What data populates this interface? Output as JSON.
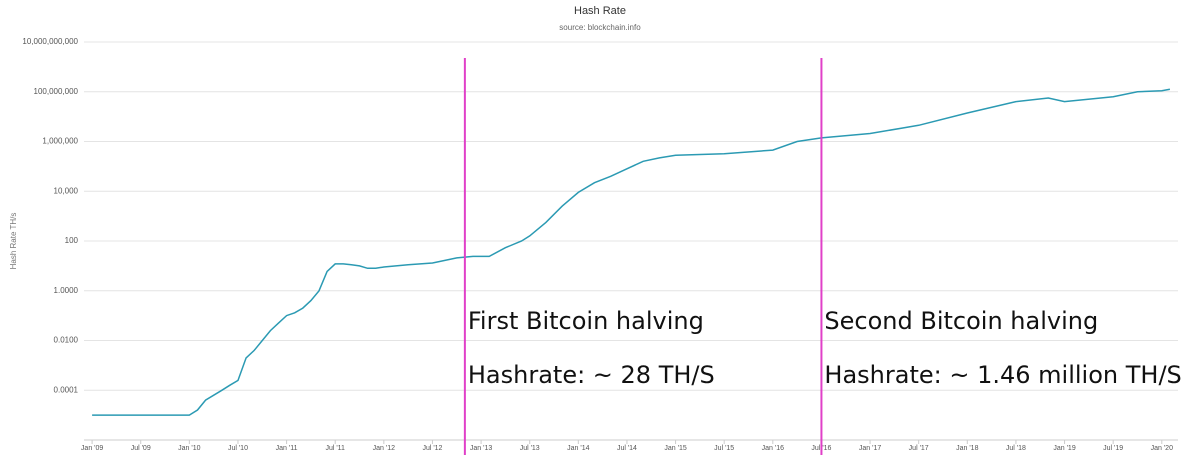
{
  "chart_data": {
    "type": "line",
    "title": "Hash Rate",
    "subtitle": "source: blockchain.info",
    "y_label": "Hash Rate TH/s",
    "log_y": true,
    "grid": true,
    "x": [
      "2009-01",
      "2010-01",
      "2010-02",
      "2010-03",
      "2010-05",
      "2010-06",
      "2010-07",
      "2010-08",
      "2010-09",
      "2010-10",
      "2010-11",
      "2010-12",
      "2011-01",
      "2011-02",
      "2011-03",
      "2011-04",
      "2011-05",
      "2011-06",
      "2011-07",
      "2011-08",
      "2011-09",
      "2011-10",
      "2011-11",
      "2011-12",
      "2012-01",
      "2012-04",
      "2012-07",
      "2012-10",
      "2012-12",
      "2013-02",
      "2013-04",
      "2013-06",
      "2013-07",
      "2013-09",
      "2013-11",
      "2014-01",
      "2014-03",
      "2014-05",
      "2014-07",
      "2014-09",
      "2014-11",
      "2015-01",
      "2015-07",
      "2016-01",
      "2016-04",
      "2016-07",
      "2017-01",
      "2017-07",
      "2018-01",
      "2018-07",
      "2018-11",
      "2019-01",
      "2019-07",
      "2019-10",
      "2020-01",
      "2020-02"
    ],
    "series": [
      {
        "name": "Hash Rate",
        "color": "#2b9ab3",
        "values": [
          1e-05,
          1e-05,
          1.6e-05,
          4e-05,
          0.0001,
          0.00016,
          0.00025,
          0.002,
          0.004,
          0.01,
          0.025,
          0.05,
          0.1,
          0.13,
          0.2,
          0.4,
          1,
          6,
          12,
          12,
          11,
          10,
          8,
          8,
          9,
          11,
          13,
          21,
          24,
          24,
          54,
          100,
          160,
          560,
          2500,
          9000,
          22000,
          40000,
          80000,
          160000,
          220000,
          280000,
          320000,
          450000,
          1000000,
          1400000,
          2100000,
          4500000,
          14000000,
          40000000,
          56000000,
          40000000,
          63000000,
          100000000,
          110000000,
          125000000
        ]
      }
    ],
    "xlim": [
      "2008-12",
      "2020-03"
    ],
    "xticks": [
      {
        "value": "2009-01",
        "label": "Jan '09"
      },
      {
        "value": "2009-07",
        "label": "Jul '09"
      },
      {
        "value": "2010-01",
        "label": "Jan '10"
      },
      {
        "value": "2010-07",
        "label": "Jul '10"
      },
      {
        "value": "2011-01",
        "label": "Jan '11"
      },
      {
        "value": "2011-07",
        "label": "Jul '11"
      },
      {
        "value": "2012-01",
        "label": "Jan '12"
      },
      {
        "value": "2012-07",
        "label": "Jul '12"
      },
      {
        "value": "2013-01",
        "label": "Jan '13"
      },
      {
        "value": "2013-07",
        "label": "Jul '13"
      },
      {
        "value": "2014-01",
        "label": "Jan '14"
      },
      {
        "value": "2014-07",
        "label": "Jul '14"
      },
      {
        "value": "2015-01",
        "label": "Jan '15"
      },
      {
        "value": "2015-07",
        "label": "Jul '15"
      },
      {
        "value": "2016-01",
        "label": "Jan '16"
      },
      {
        "value": "2016-07",
        "label": "Jul '16"
      },
      {
        "value": "2017-01",
        "label": "Jan '17"
      },
      {
        "value": "2017-07",
        "label": "Jul '17"
      },
      {
        "value": "2018-01",
        "label": "Jan '18"
      },
      {
        "value": "2018-07",
        "label": "Jul '18"
      },
      {
        "value": "2019-01",
        "label": "Jan '19"
      },
      {
        "value": "2019-07",
        "label": "Jul '19"
      },
      {
        "value": "2020-01",
        "label": "Jan '20"
      }
    ],
    "ylim": [
      1e-06,
      10000000000
    ],
    "yticks": [
      {
        "value": 10000000000,
        "label": "10,000,000,000"
      },
      {
        "value": 100000000,
        "label": "100,000,000"
      },
      {
        "value": 1000000,
        "label": "1,000,000"
      },
      {
        "value": 10000,
        "label": "10,000"
      },
      100,
      {
        "value": 1,
        "label": "1.0000"
      },
      {
        "value": 0.01,
        "label": "0.0100"
      },
      {
        "value": 0.0001,
        "label": "0.0001"
      }
    ],
    "annotations": [
      {
        "x": "2012-11",
        "color": "#e040c8",
        "lines": [
          "First Bitcoin halving",
          "Hashrate: ~ 28 TH/S"
        ]
      },
      {
        "x": "2016-07",
        "color": "#e040c8",
        "lines": [
          "Second Bitcoin halving",
          "Hashrate: ~ 1.46 million TH/S"
        ]
      }
    ]
  }
}
